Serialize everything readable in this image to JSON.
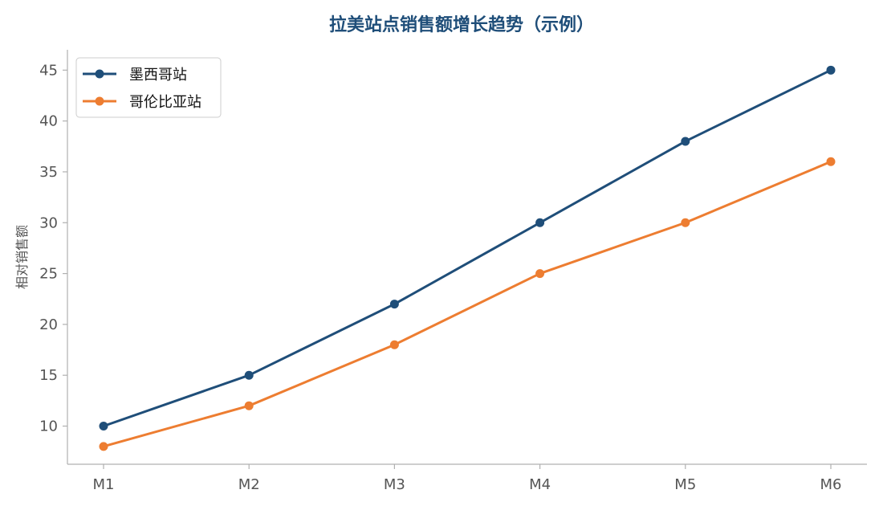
{
  "chart_data": {
    "type": "line",
    "title": "拉美站点销售额增长趋势（示例）",
    "ylabel": "相对销售额",
    "xlabel": "",
    "categories": [
      "M1",
      "M2",
      "M3",
      "M4",
      "M5",
      "M6"
    ],
    "yticks": [
      "10",
      "15",
      "20",
      "25",
      "30",
      "35",
      "40",
      "45"
    ],
    "ylim": [
      6.25,
      47
    ],
    "grid": false,
    "legend_position": "top-left",
    "title_color": "#1f4e79",
    "series": [
      {
        "name": "墨西哥站",
        "values": [
          10,
          15,
          22,
          30,
          38,
          45
        ],
        "color": "#1f4e79"
      },
      {
        "name": "哥伦比亚站",
        "values": [
          8,
          12,
          18,
          25,
          30,
          36
        ],
        "color": "#ed7d31"
      }
    ]
  }
}
